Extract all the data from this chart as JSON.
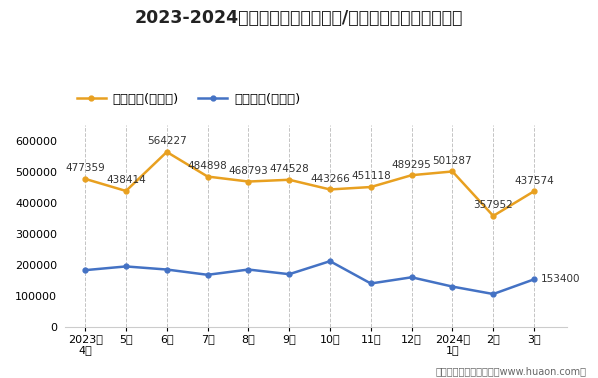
{
  "title": "2023-2024年杭州市（境内目的地/货源地）进、出口额统计",
  "x_labels": [
    "2023年\n4月",
    "5月",
    "6月",
    "7月",
    "8月",
    "9月",
    "10月",
    "11月",
    "12月",
    "2024年\n1月",
    "2月",
    "3月"
  ],
  "export_values": [
    477359,
    438414,
    564227,
    484898,
    468793,
    474528,
    443266,
    451118,
    489295,
    501287,
    357952,
    437574
  ],
  "import_values": [
    183000,
    195000,
    185000,
    168000,
    185000,
    170000,
    212000,
    140000,
    160000,
    130000,
    106000,
    153400
  ],
  "export_label": "出口总额(万美元)",
  "import_label": "进口总额(万美元)",
  "export_color": "#E8A020",
  "import_color": "#4472C4",
  "ylim": [
    0,
    650000
  ],
  "yticks": [
    0,
    100000,
    200000,
    300000,
    400000,
    500000,
    600000
  ],
  "background_color": "#ffffff",
  "title_fontsize": 12.5,
  "legend_fontsize": 9.5,
  "annotation_fontsize": 7.5,
  "tick_fontsize": 8,
  "footer": "制图：华经产业研究院（www.huaon.com）",
  "footer_fontsize": 7
}
